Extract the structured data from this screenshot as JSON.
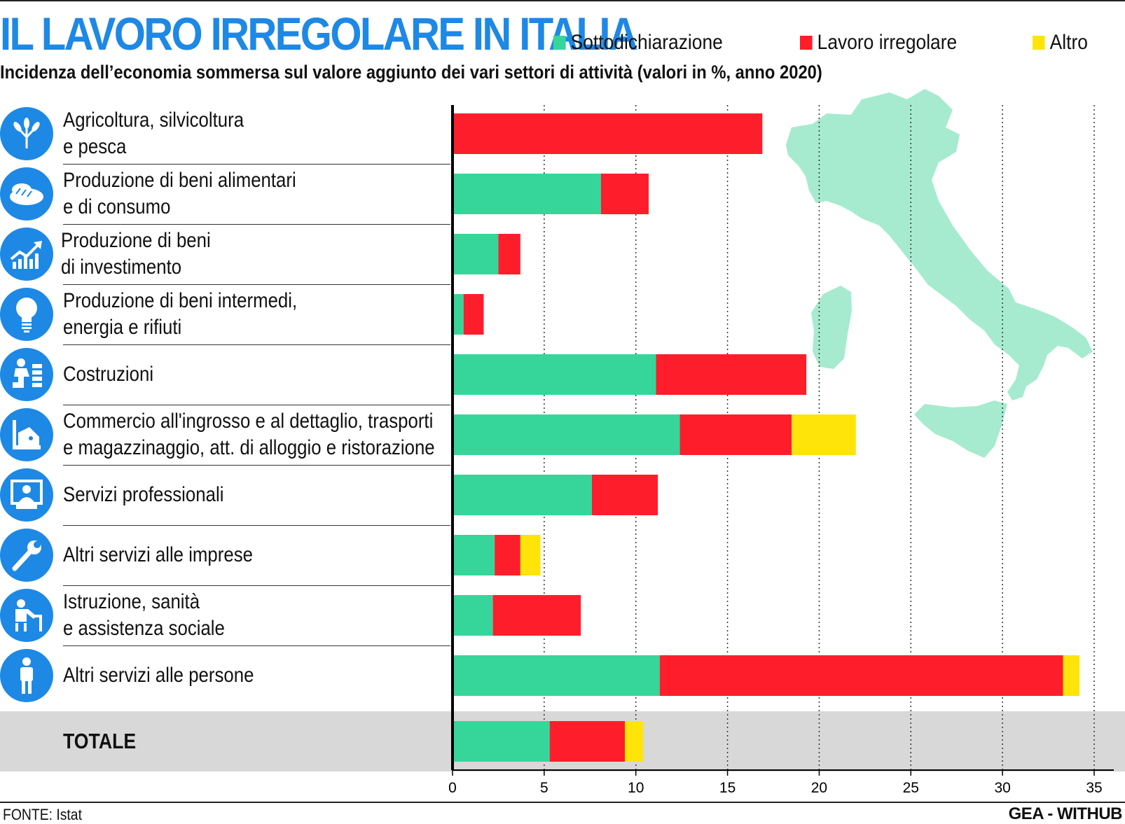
{
  "header": {
    "title": "IL LAVORO IRREGOLARE IN ITALIA",
    "subtitle": "Incidenza dell’economia sommersa sul valore aggiunto dei vari settori di attività (valori in %, anno 2020)"
  },
  "colors": {
    "accent": "#1e88e5",
    "sottodichiarazione": "#36d69b",
    "lavoro_irregolare": "#fe1e2b",
    "altro": "#ffe40a",
    "map": "#a6ebcf",
    "total_band": "#d8d8d8"
  },
  "legend": [
    {
      "label": "Sottodichiarazione",
      "color": "#36d69b"
    },
    {
      "label": "Lavoro irregolare",
      "color": "#fe1e2b"
    },
    {
      "label": "Altro",
      "color": "#ffe40a"
    }
  ],
  "rows": [
    {
      "label": "Agricoltura, silvicoltura\ne pesca",
      "icon": "wheat-icon"
    },
    {
      "label": "Produzione di beni alimentari\ne di consumo",
      "icon": "bread-icon"
    },
    {
      "label": "Produzione di beni\ndi investimento",
      "icon": "growth-chart-icon"
    },
    {
      "label": "Produzione di beni intermedi,\nenergia e rifiuti",
      "icon": "lightbulb-icon"
    },
    {
      "label": "Costruzioni",
      "icon": "bricklayer-icon"
    },
    {
      "label": "Commercio all'ingrosso e al dettaglio, trasporti\ne magazzinaggio, att. di alloggio e ristorazione",
      "icon": "cash-register-icon"
    },
    {
      "label": "Servizi professionali",
      "icon": "professional-icon"
    },
    {
      "label": "Altri servizi alle imprese",
      "icon": "wrench-icon"
    },
    {
      "label": "Istruzione, sanità\ne assistenza sociale",
      "icon": "teacher-icon"
    },
    {
      "label": "Altri servizi alle persone",
      "icon": "person-icon"
    },
    {
      "label": "TOTALE",
      "icon": ""
    }
  ],
  "chart_data": {
    "type": "bar",
    "orientation": "horizontal",
    "stacked": true,
    "title": "IL LAVORO IRREGOLARE IN ITALIA",
    "subtitle": "Incidenza dell’economia sommersa sul valore aggiunto dei vari settori di attività (valori in %, anno 2020)",
    "categories": [
      "Agricoltura, silvicoltura e pesca",
      "Produzione di beni alimentari e di consumo",
      "Produzione di beni di investimento",
      "Produzione di beni intermedi, energia e rifiuti",
      "Costruzioni",
      "Commercio all'ingrosso e al dettaglio, trasporti e magazzinaggio, att. di alloggio e ristorazione",
      "Servizi professionali",
      "Altri servizi alle imprese",
      "Istruzione, sanità e assistenza sociale",
      "Altri servizi alle persone",
      "TOTALE"
    ],
    "series": [
      {
        "name": "Sottodichiarazione",
        "color": "#36d69b",
        "values": [
          0,
          8.1,
          2.5,
          0.6,
          11.1,
          12.4,
          7.6,
          2.3,
          2.2,
          11.3,
          5.3
        ]
      },
      {
        "name": "Lavoro irregolare",
        "color": "#fe1e2b",
        "values": [
          16.9,
          2.6,
          1.2,
          1.1,
          8.2,
          6.1,
          3.6,
          1.4,
          4.8,
          22.0,
          4.1
        ]
      },
      {
        "name": "Altro",
        "color": "#ffe40a",
        "values": [
          0,
          0,
          0,
          0,
          0,
          3.5,
          0,
          1.1,
          0,
          0.9,
          1.0
        ]
      }
    ],
    "x_ticks": [
      "0",
      "5",
      "10",
      "15",
      "20",
      "25",
      "30",
      "35"
    ],
    "xlim": [
      0,
      35
    ],
    "grid": "vertical dotted",
    "legend_position": "top-right"
  },
  "footer": {
    "source": "FONTE: Istat",
    "brand": "GEA - WITHUB"
  }
}
